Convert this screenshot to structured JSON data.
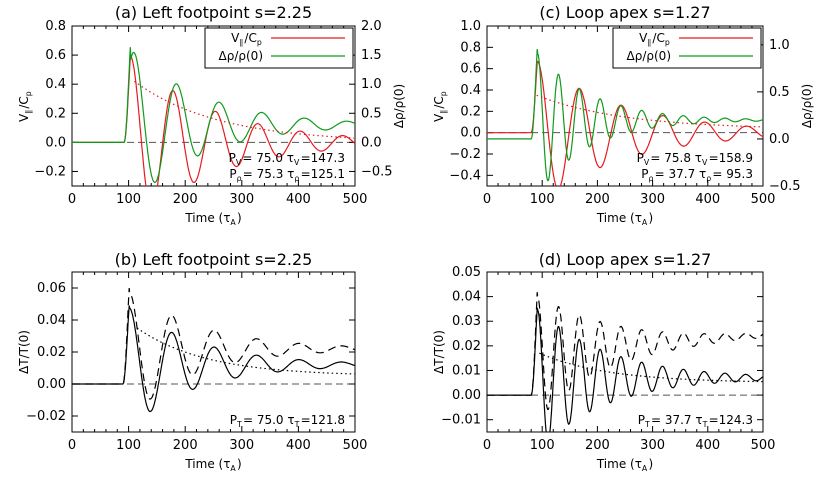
{
  "chart_data": [
    {
      "id": "a",
      "type": "line",
      "title": "(a) Left footpoint s=2.25",
      "xlabel": "Time (τ_A)",
      "ylabel": "V_∥/C_p",
      "y2label": "Δρ/ρ(0)",
      "xlim": [
        0,
        500
      ],
      "ylim": [
        -0.3,
        0.8
      ],
      "y2lim": [
        -0.75,
        2.0
      ],
      "xticks": [
        0,
        100,
        200,
        300,
        400,
        500
      ],
      "yticks": [
        -0.2,
        0.0,
        0.2,
        0.4,
        0.6,
        0.8
      ],
      "y2ticks": [
        -0.5,
        0.0,
        0.5,
        1.0,
        1.5,
        2.0
      ],
      "xtick_labels": [
        "0",
        "100",
        "200",
        "300",
        "400",
        "500"
      ],
      "ytick_labels": [
        "−0.2",
        "0.0",
        "0.2",
        "0.4",
        "0.6",
        "0.8"
      ],
      "y2tick_labels": [
        "−0.5",
        "0.0",
        "0.5",
        "1.0",
        "1.5",
        "2.0"
      ],
      "legend": {
        "position": "top-right",
        "entries": [
          {
            "label": "V_∥/C_p",
            "color": "#e8191f"
          },
          {
            "label": "Δρ/ρ(0)",
            "color": "#0f9a1a"
          }
        ]
      },
      "annotation_lines": [
        "P_V= 75.0 τ_V=147.3",
        "P_ρ= 75.3 τ_ρ=125.1"
      ],
      "series": [
        {
          "color": "#e8191f",
          "axis": "left",
          "kind": "oscillation",
          "start": 92,
          "A": 0.64,
          "period": 75.0,
          "tau": 147.3
        },
        {
          "color": "#0f9a1a",
          "axis": "right",
          "kind": "oscillation",
          "start": 92,
          "A": 1.5,
          "period": 75.3,
          "tau": 125.1,
          "lag": 6,
          "offset": 0.3
        },
        {
          "color": "#e8191f",
          "axis": "left",
          "kind": "envelope",
          "style": "dotted",
          "x": [
            110,
            500
          ],
          "A": 0.42,
          "tau": 147.3
        }
      ]
    },
    {
      "id": "c",
      "type": "line",
      "title": "(c) Loop apex s=1.27",
      "xlabel": "Time (τ_A)",
      "ylabel": "V_∥/C_p",
      "y2label": "Δρ/ρ(0)",
      "xlim": [
        0,
        500
      ],
      "ylim": [
        -0.5,
        1.0
      ],
      "y2lim": [
        -0.5,
        1.2
      ],
      "xticks": [
        0,
        100,
        200,
        300,
        400,
        500
      ],
      "yticks": [
        -0.4,
        -0.2,
        0.0,
        0.2,
        0.4,
        0.6,
        0.8,
        1.0
      ],
      "y2ticks": [
        -0.5,
        0.0,
        0.5,
        1.0
      ],
      "xtick_labels": [
        "0",
        "100",
        "200",
        "300",
        "400",
        "500"
      ],
      "ytick_labels": [
        "−0.4",
        "−0.2",
        "0.0",
        "0.2",
        "0.4",
        "0.6",
        "0.8",
        "1.0"
      ],
      "y2tick_labels": [
        "−0.5",
        "0.0",
        "0.5",
        "1.0"
      ],
      "legend": {
        "position": "top-right",
        "entries": [
          {
            "label": "V_∥/C_p",
            "color": "#e8191f"
          },
          {
            "label": "Δρ/ρ(0)",
            "color": "#0f9a1a"
          }
        ]
      },
      "annotation_lines": [
        "P_V= 75.8 τ_V=158.9",
        "P_ρ= 37.7 τ_ρ= 95.3"
      ],
      "series": [
        {
          "color": "#e8191f",
          "axis": "left",
          "kind": "oscillation",
          "start": 80,
          "A": 0.72,
          "period": 75.8,
          "tau": 158.9
        },
        {
          "color": "#0f9a1a",
          "axis": "right",
          "kind": "oscillation",
          "start": 80,
          "A": 0.85,
          "period": 37.7,
          "tau": 95.3,
          "offset": 0.2
        },
        {
          "color": "#e8191f",
          "axis": "left",
          "kind": "envelope",
          "style": "dotted",
          "x": [
            90,
            500
          ],
          "A": 0.32,
          "tau": 158.9,
          "offset": 0.03
        }
      ]
    },
    {
      "id": "b",
      "type": "line",
      "title": "(b) Left footpoint s=2.25",
      "xlabel": "Time (τ_A)",
      "ylabel": "ΔT/T(0)",
      "xlim": [
        0,
        500
      ],
      "ylim": [
        -0.03,
        0.07
      ],
      "xticks": [
        0,
        100,
        200,
        300,
        400,
        500
      ],
      "yticks": [
        -0.02,
        0.0,
        0.02,
        0.04,
        0.06
      ],
      "xtick_labels": [
        "0",
        "100",
        "200",
        "300",
        "400",
        "500"
      ],
      "ytick_labels": [
        "−0.02",
        "0.00",
        "0.02",
        "0.04",
        "0.06"
      ],
      "annotation_lines": [
        "P_T= 75.0 τ_T=121.8"
      ],
      "series": [
        {
          "color": "#000000",
          "style": "solid",
          "kind": "oscillation",
          "start": 90,
          "A": 0.042,
          "period": 75.0,
          "tau": 121.8,
          "offset": 0.012
        },
        {
          "color": "#000000",
          "style": "dashed",
          "kind": "oscillation",
          "start": 90,
          "A": 0.044,
          "period": 75.0,
          "tau": 121.8,
          "offset": 0.022,
          "grow": 0.0
        },
        {
          "color": "#000000",
          "style": "dotted",
          "kind": "envelope",
          "x": [
            115,
            500
          ],
          "A": 0.03,
          "tau": 121.8,
          "offset": 0.005
        }
      ]
    },
    {
      "id": "d",
      "type": "line",
      "title": "(d) Loop apex s=1.27",
      "xlabel": "Time (τ_A)",
      "ylabel": "ΔT/T(0)",
      "xlim": [
        0,
        500
      ],
      "ylim": [
        -0.015,
        0.05
      ],
      "xticks": [
        0,
        100,
        200,
        300,
        400,
        500
      ],
      "yticks": [
        -0.01,
        0.0,
        0.01,
        0.02,
        0.03,
        0.04,
        0.05
      ],
      "xtick_labels": [
        "0",
        "100",
        "200",
        "300",
        "400",
        "500"
      ],
      "ytick_labels": [
        "−0.01",
        "0.00",
        "0.01",
        "0.02",
        "0.03",
        "0.04",
        "0.05"
      ],
      "annotation_lines": [
        "P_T= 37.7 τ_T=124.3"
      ],
      "series": [
        {
          "color": "#000000",
          "style": "solid",
          "kind": "oscillation",
          "start": 80,
          "A": 0.032,
          "period": 37.7,
          "tau": 124.3,
          "offset": 0.007
        },
        {
          "color": "#000000",
          "style": "dashed",
          "kind": "oscillation",
          "start": 80,
          "A": 0.028,
          "period": 37.7,
          "tau": 124.3,
          "offset": 0.018,
          "grow": 0.006
        },
        {
          "color": "#000000",
          "style": "dotted",
          "kind": "envelope",
          "x": [
            95,
            500
          ],
          "A": 0.012,
          "tau": 124.3,
          "offset": 0.005
        }
      ]
    }
  ]
}
